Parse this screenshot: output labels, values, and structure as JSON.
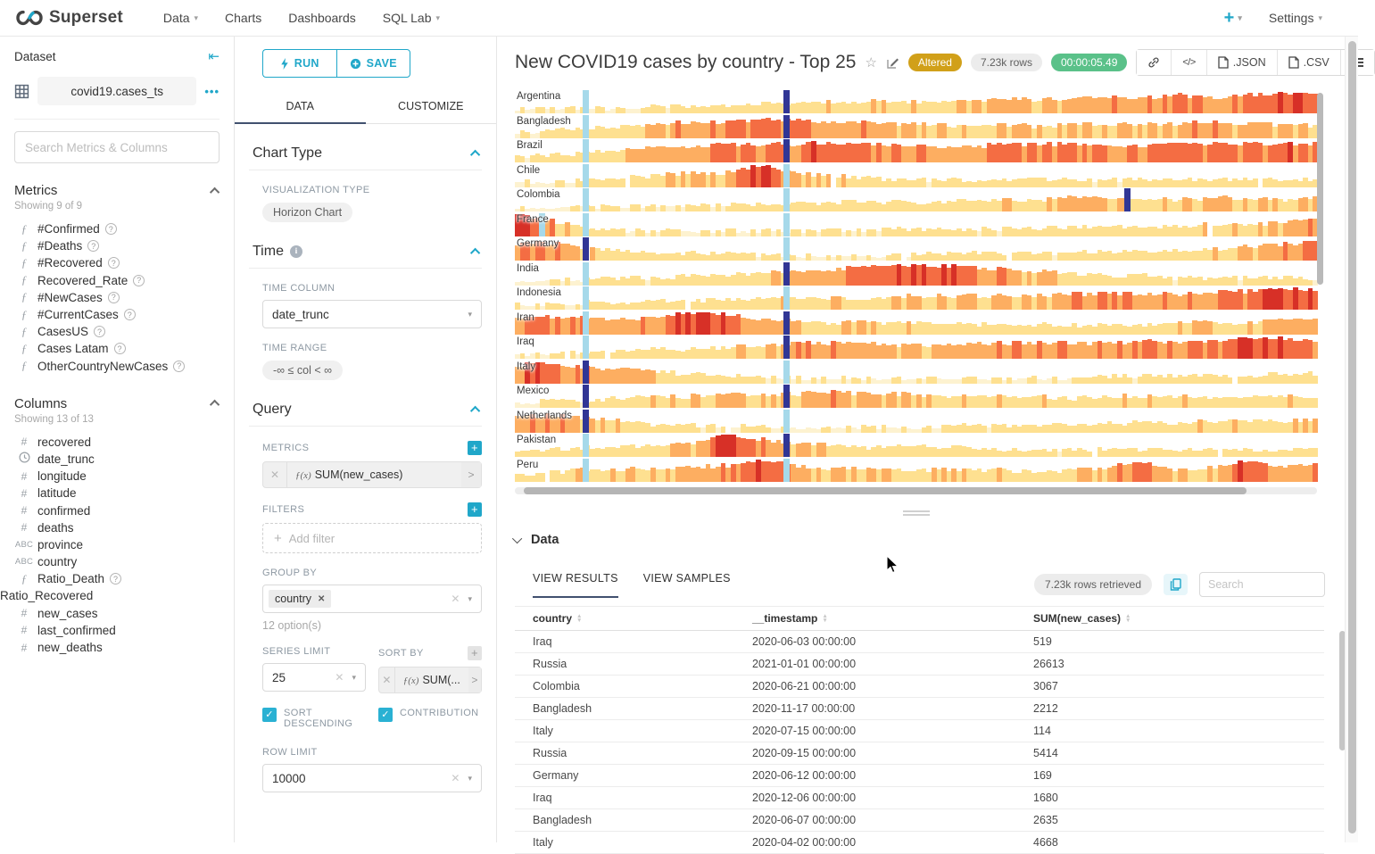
{
  "navbar": {
    "brand": "Superset",
    "items": [
      {
        "label": "Data",
        "caret": true
      },
      {
        "label": "Charts",
        "caret": false
      },
      {
        "label": "Dashboards",
        "caret": false
      },
      {
        "label": "SQL Lab",
        "caret": true
      }
    ],
    "plus_label": "+",
    "settings_label": "Settings"
  },
  "dataset_panel": {
    "title": "Dataset",
    "dataset_name": "covid19.cases_ts",
    "more_label": "•••",
    "search_placeholder": "Search Metrics & Columns",
    "metrics": {
      "title": "Metrics",
      "showing": "Showing 9 of 9",
      "items": [
        "#Confirmed",
        "#Deaths",
        "#Recovered",
        "Recovered_Rate",
        "#NewCases",
        "#CurrentCases",
        "CasesUS",
        "Cases Latam",
        "OtherCountryNewCases"
      ]
    },
    "columns": {
      "title": "Columns",
      "showing": "Showing 13 of 13",
      "items": [
        {
          "icon": "hash",
          "label": "recovered"
        },
        {
          "icon": "clock",
          "label": "date_trunc"
        },
        {
          "icon": "hash",
          "label": "longitude"
        },
        {
          "icon": "hash",
          "label": "latitude"
        },
        {
          "icon": "hash",
          "label": "confirmed"
        },
        {
          "icon": "hash",
          "label": "deaths"
        },
        {
          "icon": "abc",
          "label": "province"
        },
        {
          "icon": "abc",
          "label": "country"
        },
        {
          "icon": "fx",
          "label": "Ratio_Death",
          "help": true
        },
        {
          "icon": "none",
          "label": "Ratio_Recovered"
        },
        {
          "icon": "hash",
          "label": "new_cases"
        },
        {
          "icon": "hash",
          "label": "last_confirmed"
        },
        {
          "icon": "hash",
          "label": "new_deaths"
        }
      ]
    }
  },
  "control_panel": {
    "run_label": "RUN",
    "save_label": "SAVE",
    "tabs": [
      "DATA",
      "CUSTOMIZE"
    ],
    "active_tab": "DATA",
    "chart_type": {
      "title": "Chart Type",
      "viz_type_label": "VISUALIZATION TYPE",
      "viz_type": "Horizon Chart"
    },
    "time": {
      "title": "Time",
      "time_column_label": "TIME COLUMN",
      "time_column": "date_trunc",
      "time_range_label": "TIME RANGE",
      "time_range": "-∞ ≤ col < ∞"
    },
    "query": {
      "title": "Query",
      "metrics_label": "METRICS",
      "metric_fx": "ƒ(x)",
      "metric_value": "SUM(new_cases)",
      "filters_label": "FILTERS",
      "add_filter": "Add filter",
      "group_by_label": "GROUP BY",
      "group_by_value": "country",
      "group_by_hint": "12 option(s)",
      "series_limit_label": "SERIES LIMIT",
      "series_limit": "25",
      "sort_by_label": "SORT BY",
      "sort_by_value": "SUM(...",
      "sort_descending_label": "SORT DESCENDING",
      "contribution_label": "CONTRIBUTION",
      "row_limit_label": "ROW LIMIT",
      "row_limit": "10000"
    }
  },
  "chart_header": {
    "title": "New COVID19 cases by country - Top 25",
    "badges": {
      "altered": "Altered",
      "rows": "7.23k rows",
      "duration": "00:00:05.49"
    },
    "colors": {
      "altered_bg": "#d1a019",
      "duration_bg": "#5ac189",
      "accent": "#20a7c9"
    },
    "export_json": ".JSON",
    "export_csv": ".CSV"
  },
  "chart_data": {
    "type": "horizon",
    "title": "New COVID19 cases by country - Top 25",
    "metric": "SUM(new_cases)",
    "x_axis": "date_trunc (time, early 2020 → early 2021)",
    "legend_position": "none",
    "grid": false,
    "palette": {
      "pale": "#fdf2d0",
      "yellow": "#fee090",
      "orange": "#fdae61",
      "deep_orange": "#f46d43",
      "red": "#d73027",
      "lb": "#a6d9ea",
      "nb": "#313695"
    },
    "intensity_scale": "0 = few new cases, 9 = peak new cases (color band depth of horizon chart)",
    "series": [
      {
        "name": "Argentina",
        "profile": [
          1,
          1,
          1,
          1,
          2,
          2,
          2,
          3,
          3,
          4,
          4,
          4,
          4,
          5,
          5,
          5,
          6,
          6,
          6,
          7,
          6,
          7,
          8,
          7
        ],
        "stripes": [
          {
            "pos": 0.085,
            "c": "lb"
          },
          {
            "pos": 0.335,
            "c": "nb"
          }
        ]
      },
      {
        "name": "Bangladesh",
        "profile": [
          1,
          2,
          3,
          4,
          5,
          6,
          6,
          7,
          7,
          6,
          6,
          5,
          5,
          4,
          5,
          4,
          5,
          5,
          5,
          5,
          6,
          5,
          5,
          4
        ],
        "stripes": [
          {
            "pos": 0.085,
            "c": "lb"
          },
          {
            "pos": 0.335,
            "c": "nb"
          }
        ]
      },
      {
        "name": "Brazil",
        "profile": [
          1,
          2,
          3,
          4,
          6,
          6,
          7,
          7,
          7,
          8,
          7,
          7,
          6,
          6,
          7,
          7,
          7,
          6,
          6,
          7,
          7,
          7,
          8,
          7
        ],
        "stripes": [
          {
            "pos": 0.085,
            "c": "lb"
          },
          {
            "pos": 0.335,
            "c": "nb"
          }
        ]
      },
      {
        "name": "Chile",
        "profile": [
          1,
          1,
          2,
          3,
          4,
          5,
          5,
          9,
          5,
          4,
          3,
          2,
          2,
          2,
          2,
          2,
          2,
          2,
          2,
          2,
          2,
          2,
          2,
          2
        ],
        "stripes": [
          {
            "pos": 0.085,
            "c": "lb"
          },
          {
            "pos": 0.335,
            "c": "lb"
          }
        ]
      },
      {
        "name": "Colombia",
        "profile": [
          0,
          0,
          1,
          1,
          1,
          1,
          2,
          2,
          2,
          3,
          3,
          3,
          3,
          4,
          4,
          4,
          5,
          5,
          5,
          4,
          5,
          5,
          4,
          5
        ],
        "stripes": [
          {
            "pos": 0.085,
            "c": "lb"
          },
          {
            "pos": 0.335,
            "c": "lb"
          },
          {
            "pos": 0.76,
            "c": "nb"
          }
        ]
      },
      {
        "name": "France",
        "profile": [
          9,
          6,
          2,
          1,
          1,
          1,
          1,
          1,
          1,
          1,
          1,
          2,
          2,
          2,
          2,
          2,
          3,
          3,
          3,
          3,
          4,
          4,
          5,
          6
        ],
        "stripes": [
          {
            "pos": 0.03,
            "c": "lb"
          },
          {
            "pos": 0.085,
            "c": "lb"
          },
          {
            "pos": 0.335,
            "c": "lb"
          }
        ]
      },
      {
        "name": "Germany",
        "profile": [
          6,
          7,
          4,
          3,
          2,
          2,
          2,
          1,
          1,
          1,
          1,
          1,
          2,
          2,
          2,
          2,
          2,
          3,
          3,
          3,
          4,
          5,
          6,
          7
        ],
        "stripes": [
          {
            "pos": 0.085,
            "c": "nb"
          },
          {
            "pos": 0.335,
            "c": "lb"
          }
        ]
      },
      {
        "name": "India",
        "profile": [
          0,
          1,
          1,
          2,
          2,
          3,
          3,
          4,
          5,
          6,
          7,
          8,
          8,
          7,
          6,
          5,
          4,
          3,
          3,
          2,
          2,
          2,
          2,
          2
        ],
        "stripes": [
          {
            "pos": 0.085,
            "c": "lb"
          },
          {
            "pos": 0.335,
            "c": "nb"
          }
        ]
      },
      {
        "name": "Indonesia",
        "profile": [
          1,
          1,
          2,
          2,
          3,
          3,
          3,
          4,
          4,
          4,
          4,
          5,
          5,
          5,
          5,
          5,
          6,
          6,
          6,
          6,
          7,
          7,
          8,
          8
        ],
        "stripes": [
          {
            "pos": 0.085,
            "c": "lb"
          },
          {
            "pos": 0.335,
            "c": "lb"
          }
        ]
      },
      {
        "name": "Iran",
        "profile": [
          6,
          7,
          6,
          5,
          6,
          9,
          8,
          6,
          5,
          4,
          4,
          4,
          3,
          3,
          3,
          3,
          3,
          3,
          3,
          4,
          4,
          4,
          5,
          5
        ],
        "stripes": [
          {
            "pos": 0.085,
            "c": "lb"
          },
          {
            "pos": 0.335,
            "c": "nb"
          }
        ]
      },
      {
        "name": "Iraq",
        "profile": [
          1,
          1,
          2,
          2,
          3,
          3,
          4,
          5,
          6,
          6,
          6,
          5,
          5,
          5,
          6,
          6,
          6,
          6,
          7,
          6,
          7,
          8,
          8,
          7
        ],
        "stripes": [
          {
            "pos": 0.085,
            "c": "lb"
          },
          {
            "pos": 0.335,
            "c": "nb"
          }
        ]
      },
      {
        "name": "Italy",
        "profile": [
          7,
          8,
          6,
          5,
          4,
          3,
          2,
          2,
          1,
          1,
          1,
          1,
          1,
          1,
          1,
          1,
          1,
          2,
          2,
          2,
          2,
          2,
          3,
          3
        ],
        "stripes": [
          {
            "pos": 0.085,
            "c": "nb"
          },
          {
            "pos": 0.335,
            "c": "lb"
          }
        ]
      },
      {
        "name": "Mexico",
        "profile": [
          1,
          2,
          2,
          3,
          4,
          4,
          5,
          5,
          5,
          6,
          5,
          5,
          4,
          4,
          4,
          4,
          3,
          4,
          4,
          4,
          3,
          4,
          4,
          4
        ],
        "stripes": [
          {
            "pos": 0.085,
            "c": "nb"
          },
          {
            "pos": 0.335,
            "c": "nb"
          }
        ]
      },
      {
        "name": "Netherlands",
        "profile": [
          6,
          7,
          5,
          4,
          2,
          2,
          2,
          1,
          1,
          1,
          1,
          1,
          1,
          2,
          2,
          2,
          2,
          3,
          3,
          3,
          4,
          4,
          4,
          4
        ],
        "stripes": [
          {
            "pos": 0.085,
            "c": "nb"
          },
          {
            "pos": 0.335,
            "c": "lb"
          }
        ]
      },
      {
        "name": "Pakistan",
        "profile": [
          2,
          2,
          3,
          3,
          4,
          5,
          9,
          7,
          5,
          4,
          3,
          4,
          3,
          3,
          2,
          2,
          2,
          2,
          2,
          2,
          2,
          2,
          2,
          3
        ],
        "stripes": [
          {
            "pos": 0.085,
            "c": "lb"
          },
          {
            "pos": 0.335,
            "c": "nb"
          }
        ]
      },
      {
        "name": "Peru",
        "profile": [
          2,
          3,
          4,
          4,
          5,
          5,
          6,
          9,
          6,
          5,
          5,
          4,
          4,
          4,
          4,
          3,
          4,
          5,
          8,
          4,
          5,
          8,
          5,
          6
        ],
        "stripes": [
          {
            "pos": 0.085,
            "c": "lb"
          },
          {
            "pos": 0.335,
            "c": "lb"
          }
        ]
      }
    ]
  },
  "data_panel": {
    "title": "Data",
    "tabs": [
      "VIEW RESULTS",
      "VIEW SAMPLES"
    ],
    "active_tab": "VIEW RESULTS",
    "rows_retrieved": "7.23k rows retrieved",
    "search_placeholder": "Search",
    "table": {
      "columns": [
        "country",
        "__timestamp",
        "SUM(new_cases)"
      ],
      "rows": [
        [
          "Iraq",
          "2020-06-03 00:00:00",
          "519"
        ],
        [
          "Russia",
          "2021-01-01 00:00:00",
          "26613"
        ],
        [
          "Colombia",
          "2020-06-21 00:00:00",
          "3067"
        ],
        [
          "Bangladesh",
          "2020-11-17 00:00:00",
          "2212"
        ],
        [
          "Italy",
          "2020-07-15 00:00:00",
          "114"
        ],
        [
          "Russia",
          "2020-09-15 00:00:00",
          "5414"
        ],
        [
          "Germany",
          "2020-06-12 00:00:00",
          "169"
        ],
        [
          "Iraq",
          "2020-12-06 00:00:00",
          "1680"
        ],
        [
          "Bangladesh",
          "2020-06-07 00:00:00",
          "2635"
        ],
        [
          "Italy",
          "2020-04-02 00:00:00",
          "4668"
        ]
      ]
    }
  }
}
